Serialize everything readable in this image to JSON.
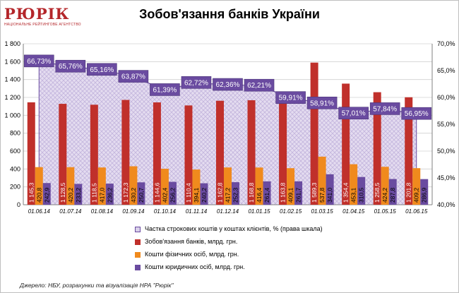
{
  "logo": {
    "name": "РЮРІК",
    "tagline": "НАЦІОНАЛЬНЕ РЕЙТИНГОВЕ АГЕНТСТВО"
  },
  "source": "Джерело:  НБУ, розрахунки  та  візуалізація НРА \"Рюрік\"",
  "chart_data": {
    "type": "bar",
    "title": "Зобов'язання банків України",
    "categories": [
      "01.06.14",
      "01.07.14",
      "01.08.14",
      "01.09.14",
      "01.10.14",
      "01.11.14",
      "01.12.14",
      "01.01.15",
      "01.02.15",
      "01.03.15",
      "01.04.15",
      "01.05.15",
      "01.06.15"
    ],
    "series": [
      {
        "name": "Зобов'язання  банків, млрд. грн.",
        "color": "#c0302b",
        "values": [
          1145.3,
          1128.5,
          1118.5,
          1172.3,
          1144.6,
          1110.4,
          1162.8,
          1168.8,
          1163.8,
          1589.3,
          1354.4,
          1258.5,
          1201.8
        ],
        "labels": [
          "1 145,3",
          "1 128,5",
          "1 118,5",
          "1 172,3",
          "1 144,6",
          "1 110,4",
          "1 162,8",
          "1 168,8",
          "1 163,8",
          "1 589,3",
          "1 354,4",
          "1 258,5",
          "1 201,8"
        ]
      },
      {
        "name": "Кошти  фізичних осіб,  млрд. грн.",
        "color": "#f08a1d",
        "values": [
          420.8,
          420.2,
          417.0,
          430.2,
          402.4,
          394.1,
          417.2,
          416.4,
          409.1,
          537.8,
          453.1,
          424.2,
          409.2
        ],
        "labels": [
          "420,8",
          "420,2",
          "417,0",
          "430,2",
          "402,4",
          "394,1",
          "417,2",
          "416,4",
          "409,1",
          "537,8",
          "453,1",
          "424,2",
          "409,2"
        ]
      },
      {
        "name": "Кошти  юридичних осіб,  млрд. грн.",
        "color": "#6a4ba0",
        "values": [
          242.9,
          233.2,
          236.2,
          250.7,
          256.2,
          240.2,
          252.3,
          261.4,
          261.7,
          341.0,
          310.5,
          287.8,
          286.9
        ],
        "labels": [
          "242,9",
          "233,2",
          "236,2",
          "250,7",
          "256,2",
          "240,2",
          "252,3",
          "261,4",
          "261,7",
          "341,0",
          "310,5",
          "287,8",
          "286,9"
        ]
      },
      {
        "name": "Частка строкових коштів у коштах клієнтів, % (права шкала)",
        "color": "#d9d0ea",
        "axis": "right",
        "kind": "area",
        "values": [
          66.73,
          65.76,
          65.16,
          63.87,
          61.39,
          62.72,
          62.36,
          62.21,
          59.91,
          58.91,
          57.01,
          57.84,
          56.95
        ],
        "labels": [
          "66,73%",
          "65,76%",
          "65,16%",
          "63,87%",
          "61,39%",
          "62,72%",
          "62,36%",
          "62,21%",
          "59,91%",
          "58,91%",
          "57,01%",
          "57,84%",
          "56,95%"
        ]
      }
    ],
    "legend_order": [
      3,
      0,
      1,
      2
    ],
    "legend_position": "bottom-center",
    "ylim_left": [
      0,
      1800
    ],
    "yticks_left": [
      "0",
      "200",
      "400",
      "600",
      "800",
      "1 000",
      "1 200",
      "1 400",
      "1 600",
      "1 800"
    ],
    "ylim_right": [
      40,
      70
    ],
    "yticks_right": [
      "40,0%",
      "45,0%",
      "50,0%",
      "55,0%",
      "60,0%",
      "65,0%",
      "70,0%"
    ],
    "grid": true,
    "label_box_color": "#6a4ba0"
  }
}
